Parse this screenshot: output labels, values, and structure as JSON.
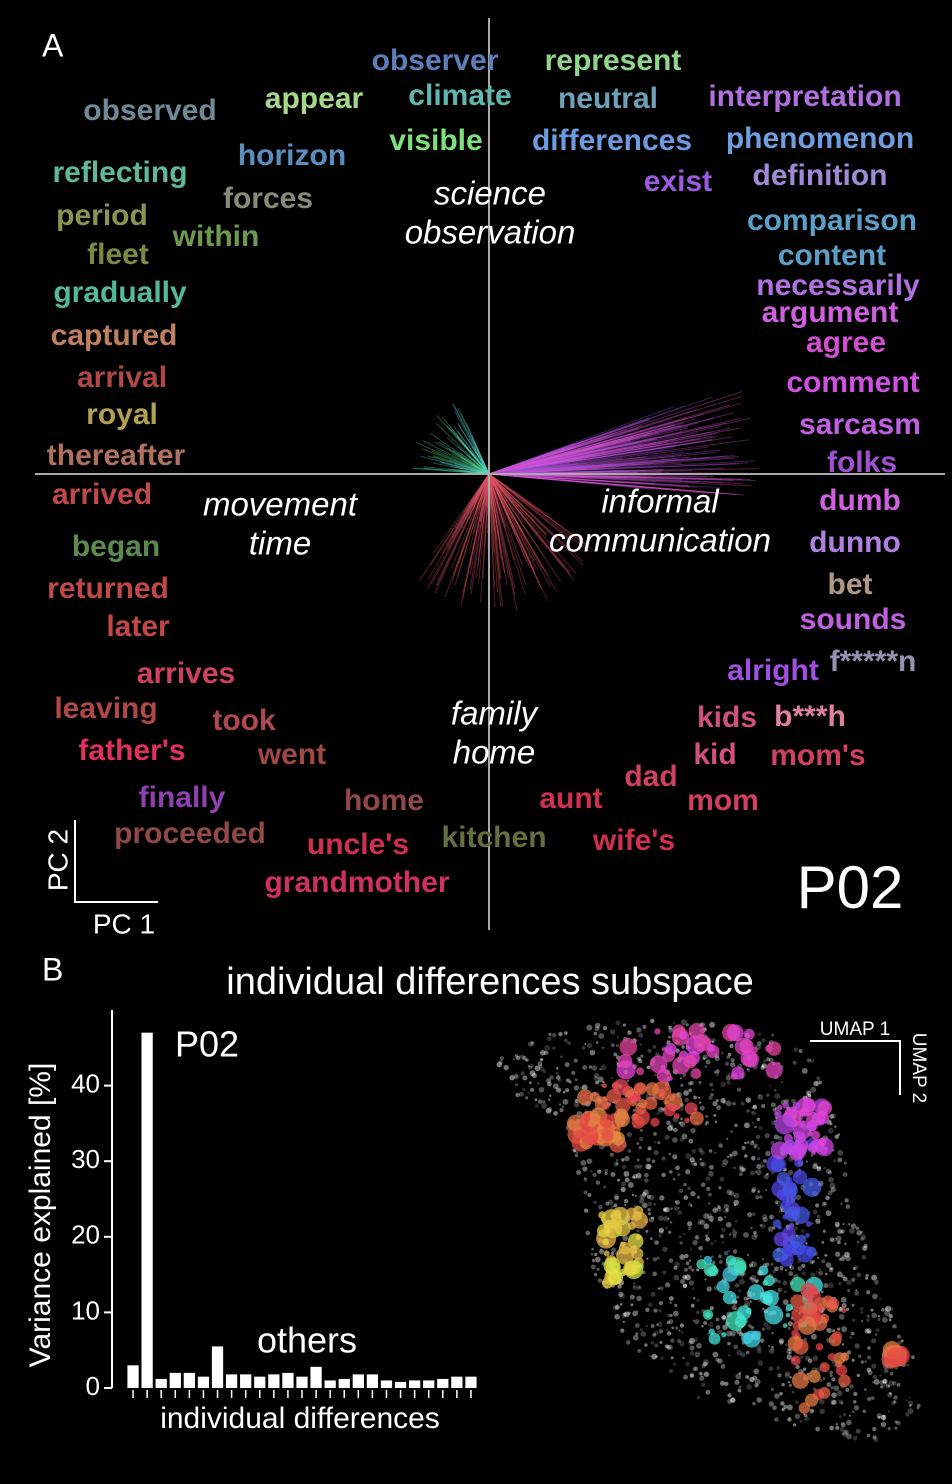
{
  "panel_a": {
    "label": "A",
    "participant": "P02",
    "x_axis": "PC 1",
    "y_axis": "PC 2",
    "quadrant_labels": [
      [
        "science",
        "observation"
      ],
      [
        "movement",
        "time"
      ],
      [
        "informal",
        "communication"
      ],
      [
        "family",
        "home"
      ]
    ],
    "words": [
      {
        "text": "observer",
        "color": "#5b7fb8"
      },
      {
        "text": "represent",
        "color": "#8fd68a"
      },
      {
        "text": "observed",
        "color": "#6f8a94"
      },
      {
        "text": "appear",
        "color": "#a7d88a"
      },
      {
        "text": "climate",
        "color": "#5fb7b0"
      },
      {
        "text": "neutral",
        "color": "#6fa0b8"
      },
      {
        "text": "interpretation",
        "color": "#b070e0"
      },
      {
        "text": "visible",
        "color": "#7ee07a"
      },
      {
        "text": "differences",
        "color": "#6c9be0"
      },
      {
        "text": "phenomenon",
        "color": "#6f9ee0"
      },
      {
        "text": "reflecting",
        "color": "#5fb89a"
      },
      {
        "text": "horizon",
        "color": "#5a8ec0"
      },
      {
        "text": "exist",
        "color": "#9b5ae0"
      },
      {
        "text": "definition",
        "color": "#a08ad6"
      },
      {
        "text": "forces",
        "color": "#8a8a78"
      },
      {
        "text": "period",
        "color": "#8a9650"
      },
      {
        "text": "within",
        "color": "#6e9a50"
      },
      {
        "text": "comparison",
        "color": "#5b9ec8"
      },
      {
        "text": "fleet",
        "color": "#7a8a40"
      },
      {
        "text": "content",
        "color": "#5b9ec8"
      },
      {
        "text": "necessarily",
        "color": "#b070e0"
      },
      {
        "text": "gradually",
        "color": "#56b89a"
      },
      {
        "text": "argument",
        "color": "#d060e0"
      },
      {
        "text": "captured",
        "color": "#c08060"
      },
      {
        "text": "agree",
        "color": "#d050d0"
      },
      {
        "text": "arrival",
        "color": "#b04848"
      },
      {
        "text": "royal",
        "color": "#b0a050"
      },
      {
        "text": "comment",
        "color": "#d050e0"
      },
      {
        "text": "sarcasm",
        "color": "#c060e0"
      },
      {
        "text": "thereafter",
        "color": "#b07060"
      },
      {
        "text": "folks",
        "color": "#a050d0"
      },
      {
        "text": "arrived",
        "color": "#c04848"
      },
      {
        "text": "dumb",
        "color": "#d060e0"
      },
      {
        "text": "dunno",
        "color": "#b080e0"
      },
      {
        "text": "began",
        "color": "#5a8a50"
      },
      {
        "text": "returned",
        "color": "#c04848"
      },
      {
        "text": "bet",
        "color": "#b09888"
      },
      {
        "text": "later",
        "color": "#c04848"
      },
      {
        "text": "sounds",
        "color": "#c060e0"
      },
      {
        "text": "arrives",
        "color": "#d04060"
      },
      {
        "text": "alright",
        "color": "#a050e0"
      },
      {
        "text": "f*****n",
        "color": "#9890b0"
      },
      {
        "text": "leaving",
        "color": "#b04848"
      },
      {
        "text": "took",
        "color": "#b04850"
      },
      {
        "text": "kids",
        "color": "#d05080"
      },
      {
        "text": "b***h",
        "color": "#e080a0"
      },
      {
        "text": "father's",
        "color": "#e03060"
      },
      {
        "text": "went",
        "color": "#a04848"
      },
      {
        "text": "kid",
        "color": "#d05080"
      },
      {
        "text": "mom's",
        "color": "#d04060"
      },
      {
        "text": "dad",
        "color": "#d04060"
      },
      {
        "text": "finally",
        "color": "#9040b0"
      },
      {
        "text": "home",
        "color": "#904848"
      },
      {
        "text": "aunt",
        "color": "#d03050"
      },
      {
        "text": "mom",
        "color": "#d04060"
      },
      {
        "text": "proceeded",
        "color": "#904848"
      },
      {
        "text": "uncle's",
        "color": "#d03050"
      },
      {
        "text": "kitchen",
        "color": "#607040"
      },
      {
        "text": "wife's",
        "color": "#d03050"
      },
      {
        "text": "grandmother",
        "color": "#d03060"
      }
    ]
  },
  "chart_data": {
    "type": "bar",
    "panel": "B",
    "title": "individual differences subspace",
    "ylabel": "Variance explained [%]",
    "xlabel": "individual differences",
    "categories": [
      null,
      null,
      null,
      null,
      null,
      null,
      null,
      null,
      null,
      null,
      null,
      null,
      null,
      null,
      null,
      null,
      null,
      null,
      null,
      null,
      null,
      null,
      null,
      null,
      null
    ],
    "values": [
      3,
      47,
      1.2,
      2,
      2,
      1.5,
      5.5,
      1.8,
      1.8,
      1.5,
      1.8,
      2,
      1.5,
      2.8,
      1,
      1.2,
      1.8,
      1.8,
      1,
      0.8,
      1,
      1,
      1.2,
      1.5,
      1.5
    ],
    "color": "#ffffff",
    "ylim": [
      0,
      50
    ],
    "yticks": [
      0,
      10,
      20,
      30,
      40
    ],
    "annotations": [
      "P02",
      "others"
    ]
  },
  "umap": {
    "x_axis": "UMAP 1",
    "y_axis": "UMAP 2"
  }
}
